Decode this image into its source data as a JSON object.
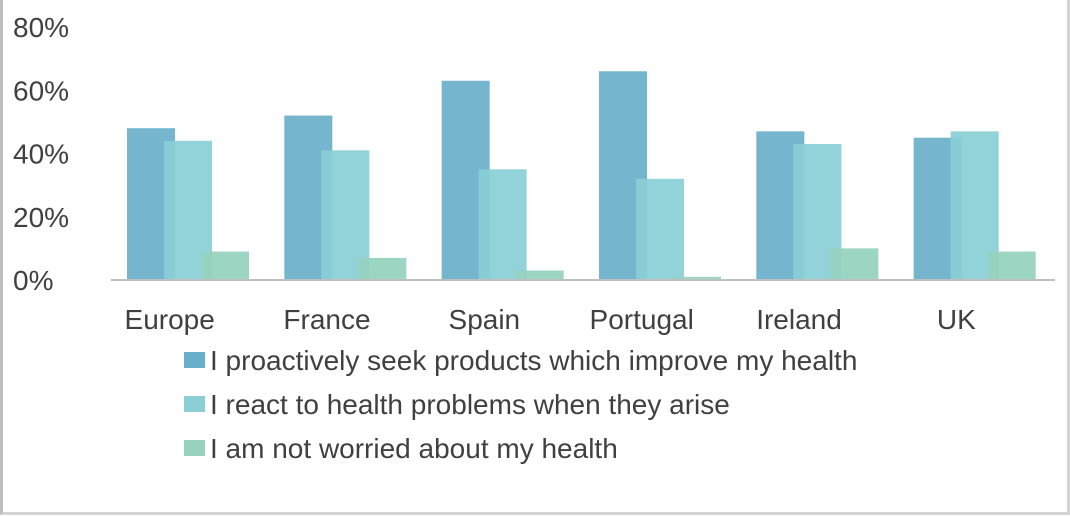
{
  "chart_data": {
    "type": "bar",
    "title": "",
    "xlabel": "",
    "ylabel": "",
    "categories": [
      "Europe",
      "France",
      "Spain",
      "Portugal",
      "Ireland",
      "UK"
    ],
    "series": [
      {
        "name": "I proactively seek products which improve my health",
        "color": "#6aafca",
        "values": [
          48,
          52,
          63,
          66,
          47,
          45
        ]
      },
      {
        "name": "I react to health problems when they arise",
        "color": "#8acfd6",
        "values": [
          44,
          41,
          35,
          32,
          43,
          47
        ]
      },
      {
        "name": "I am not worried about my health",
        "color": "#96d2be",
        "values": [
          9,
          7,
          3,
          1,
          10,
          9
        ]
      }
    ],
    "ylim": [
      0,
      80
    ],
    "yticks": [
      0,
      20,
      40,
      60,
      80
    ],
    "ytick_format": "percent",
    "grid": false,
    "legend_position": "bottom"
  }
}
